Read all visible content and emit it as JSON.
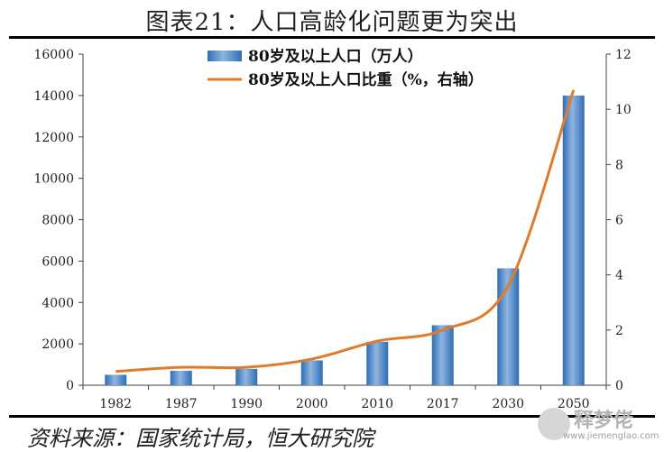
{
  "title": "图表21：人口高龄化问题更为突出",
  "source": "资料来源：国家统计局，恒大研究院",
  "watermark": {
    "text": "释梦佬",
    "url": "www.jiemenglao.com"
  },
  "colors": {
    "bar": "#2f6db5",
    "bar_light": "#8fb5e0",
    "line": "#e07b2a",
    "axis": "#404040"
  },
  "chart_data": {
    "type": "bar",
    "categories": [
      "1982",
      "1987",
      "1990",
      "2000",
      "2010",
      "2017",
      "2030",
      "2050"
    ],
    "series": [
      {
        "name": "80岁及以上人口（万人）",
        "type": "bar",
        "axis": "left",
        "values": [
          505,
          700,
          790,
          1200,
          2100,
          2900,
          5650,
          14000
        ]
      },
      {
        "name": "80岁及以上人口比重（%，右轴）",
        "type": "line",
        "axis": "right",
        "values": [
          0.5,
          0.65,
          0.65,
          0.95,
          1.6,
          2.0,
          3.6,
          10.7
        ]
      }
    ],
    "ylim": [
      0,
      16000
    ],
    "y_ticks": [
      0,
      2000,
      4000,
      6000,
      8000,
      10000,
      12000,
      14000,
      16000
    ],
    "y2lim": [
      0,
      12
    ],
    "y2_ticks": [
      0,
      2,
      4,
      6,
      8,
      10,
      12
    ],
    "legend": "top-center"
  }
}
